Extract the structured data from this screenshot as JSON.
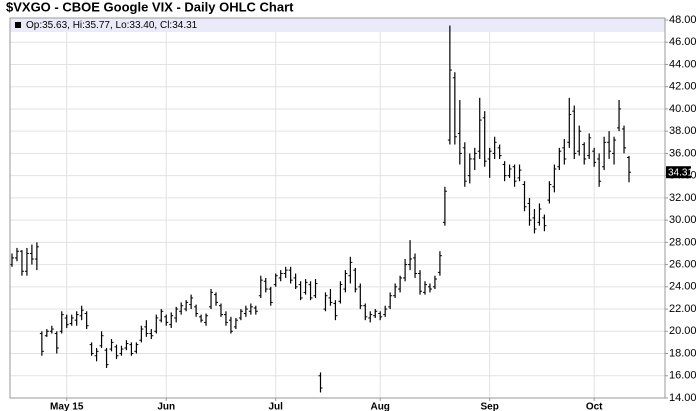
{
  "chart_data": {
    "type": "ohlc",
    "title": "$VXGO - CBOE Google VIX - Daily OHLC Chart",
    "annotation": "Op:35.63, Hi:35.77, Lo:33.40, Cl:34.31",
    "color": "#000000",
    "grid": true,
    "categories": [
      null,
      null,
      null,
      null,
      null,
      null,
      null,
      null,
      null,
      null,
      null,
      "May 15",
      null,
      null,
      null,
      null,
      null,
      null,
      null,
      null,
      null,
      null,
      null,
      null,
      null,
      null,
      null,
      null,
      null,
      null,
      null,
      "Jun",
      null,
      null,
      null,
      null,
      null,
      null,
      null,
      null,
      null,
      null,
      null,
      null,
      null,
      null,
      null,
      null,
      null,
      null,
      null,
      null,
      null,
      "Jul",
      null,
      null,
      null,
      null,
      null,
      null,
      null,
      null,
      null,
      null,
      null,
      null,
      null,
      null,
      null,
      null,
      null,
      null,
      null,
      null,
      "Aug",
      null,
      null,
      null,
      null,
      null,
      null,
      null,
      null,
      null,
      null,
      null,
      null,
      null,
      null,
      null,
      null,
      null,
      null,
      null,
      null,
      null,
      "Sep",
      null,
      null,
      null,
      null,
      null,
      null,
      null,
      null,
      null,
      null,
      null,
      null,
      null,
      null,
      null,
      null,
      null,
      null,
      null,
      null,
      "Oct",
      null,
      null,
      null,
      null,
      null,
      null,
      null
    ],
    "open": [
      26.0,
      26.6,
      27.2,
      25.4,
      27.0,
      26.5,
      19.8,
      19.6,
      20.0,
      19.8,
      20.0,
      21.2,
      20.7,
      21.0,
      21.4,
      21.6,
      18.8,
      17.8,
      18.7,
      18.3,
      18.4,
      18.6,
      18.0,
      18.5,
      18.8,
      18.2,
      19.2,
      20.4,
      19.8,
      20.0,
      21.0,
      21.3,
      20.6,
      21.2,
      21.8,
      22.0,
      22.4,
      22.2,
      21.3,
      20.8,
      22.2,
      23.3,
      22.3,
      21.5,
      21.0,
      20.4,
      21.2,
      21.6,
      21.8,
      22.1,
      23.2,
      24.5,
      23.8,
      24.2,
      24.8,
      25.2,
      25.5,
      24.8,
      24.2,
      23.5,
      24.2,
      23.2,
      16.0,
      22.0,
      23.0,
      22.5,
      22.7,
      23.8,
      25.0,
      25.5,
      24.0,
      22.3,
      21.2,
      21.4,
      21.6,
      21.5,
      22.2,
      23.2,
      23.8,
      24.8,
      26.0,
      26.6,
      25.2,
      23.5,
      24.0,
      24.0,
      25.3,
      29.8,
      37.2,
      42.8,
      37.8,
      36.5,
      34.0,
      35.5,
      36.2,
      39.2,
      35.5,
      36.0,
      36.5,
      35.0,
      34.0,
      34.8,
      33.8,
      33.2,
      31.5,
      30.2,
      29.8,
      30.2,
      31.8,
      33.0,
      34.8,
      36.5,
      37.0,
      39.8,
      36.2,
      36.8,
      35.8,
      36.2,
      35.5,
      34.8,
      37.0,
      36.0,
      38.3,
      38.2,
      35.63
    ],
    "high": [
      27.0,
      27.5,
      27.3,
      27.5,
      27.8,
      28.0,
      20.0,
      20.2,
      20.5,
      20.0,
      21.8,
      21.5,
      21.5,
      21.8,
      22.3,
      21.8,
      19.0,
      18.5,
      20.0,
      18.5,
      19.3,
      18.8,
      18.7,
      19.2,
      19.0,
      19.0,
      20.5,
      21.0,
      20.2,
      21.5,
      22.0,
      21.5,
      21.7,
      22.2,
      22.6,
      22.8,
      23.3,
      22.4,
      21.5,
      21.6,
      23.8,
      23.5,
      22.5,
      21.8,
      21.3,
      21.2,
      22.0,
      22.3,
      22.5,
      22.3,
      25.0,
      24.8,
      24.0,
      25.2,
      25.5,
      25.8,
      25.8,
      25.2,
      24.5,
      24.7,
      24.5,
      24.7,
      16.3,
      23.5,
      23.8,
      22.8,
      24.5,
      25.5,
      26.7,
      25.7,
      24.3,
      22.5,
      21.8,
      22.0,
      21.8,
      22.3,
      23.5,
      24.3,
      25.0,
      26.5,
      28.2,
      27.0,
      25.5,
      24.5,
      24.3,
      25.0,
      27.2,
      33.0,
      47.5,
      43.3,
      40.8,
      37.0,
      36.0,
      36.5,
      41.0,
      39.8,
      36.5,
      37.5,
      36.8,
      35.3,
      35.0,
      35.0,
      35.0,
      33.5,
      32.0,
      31.0,
      31.5,
      30.5,
      33.5,
      35.0,
      36.5,
      37.3,
      41.0,
      40.3,
      38.5,
      37.0,
      37.8,
      36.5,
      36.0,
      37.5,
      38.0,
      37.5,
      40.8,
      38.5,
      35.77
    ],
    "low": [
      25.8,
      26.3,
      25.0,
      25.0,
      26.0,
      25.5,
      17.8,
      19.5,
      19.8,
      18.0,
      19.8,
      20.3,
      20.5,
      20.5,
      21.0,
      20.2,
      17.8,
      17.3,
      18.5,
      16.7,
      18.2,
      17.5,
      17.8,
      18.3,
      17.8,
      18.0,
      19.0,
      19.5,
      19.3,
      19.8,
      20.8,
      20.5,
      20.3,
      20.8,
      21.5,
      21.8,
      22.0,
      21.3,
      20.8,
      20.5,
      22.0,
      22.3,
      21.3,
      20.5,
      19.8,
      20.2,
      21.0,
      21.3,
      21.5,
      21.5,
      23.0,
      23.5,
      22.3,
      24.0,
      24.5,
      24.8,
      24.3,
      23.8,
      22.8,
      23.3,
      22.8,
      23.0,
      14.5,
      21.8,
      22.3,
      21.0,
      22.5,
      23.5,
      24.3,
      23.5,
      22.0,
      21.0,
      20.8,
      21.2,
      21.0,
      21.3,
      22.0,
      23.0,
      23.5,
      24.5,
      25.5,
      24.8,
      23.3,
      23.3,
      23.5,
      23.8,
      25.0,
      29.5,
      36.8,
      36.8,
      35.0,
      33.0,
      33.3,
      34.5,
      35.5,
      34.8,
      33.8,
      35.5,
      35.5,
      33.5,
      33.8,
      33.0,
      33.5,
      30.8,
      29.5,
      28.8,
      29.5,
      29.0,
      31.5,
      32.5,
      34.5,
      35.0,
      36.5,
      35.5,
      35.8,
      35.0,
      35.5,
      34.8,
      33.0,
      34.5,
      35.5,
      35.0,
      38.0,
      36.0,
      33.4
    ],
    "close": [
      26.6,
      27.2,
      25.4,
      27.0,
      26.5,
      27.6,
      18.2,
      20.0,
      20.2,
      18.5,
      21.5,
      20.6,
      21.2,
      21.5,
      21.9,
      20.5,
      18.0,
      18.2,
      19.6,
      17.0,
      19.0,
      17.8,
      18.4,
      18.9,
      18.0,
      18.8,
      20.2,
      19.8,
      19.6,
      21.2,
      21.8,
      20.8,
      21.4,
      22.0,
      22.3,
      22.6,
      23.0,
      21.6,
      21.0,
      21.4,
      23.5,
      22.6,
      21.5,
      20.8,
      20.0,
      21.0,
      21.8,
      22.0,
      22.2,
      21.8,
      24.6,
      23.8,
      22.6,
      25.0,
      25.2,
      25.5,
      24.6,
      24.0,
      23.0,
      24.4,
      23.0,
      24.3,
      14.9,
      23.2,
      22.6,
      21.4,
      24.2,
      25.2,
      26.2,
      23.8,
      22.3,
      21.3,
      21.5,
      21.8,
      21.3,
      22.0,
      23.2,
      24.0,
      24.8,
      26.0,
      26.5,
      25.2,
      23.6,
      24.2,
      23.8,
      24.7,
      26.8,
      32.6,
      43.5,
      37.5,
      36.0,
      33.5,
      35.5,
      36.0,
      39.0,
      35.3,
      36.2,
      37.0,
      35.8,
      34.0,
      34.6,
      33.5,
      34.5,
      31.2,
      30.0,
      29.2,
      31.0,
      29.5,
      33.2,
      34.6,
      36.2,
      35.5,
      39.5,
      36.0,
      38.0,
      35.5,
      37.4,
      35.2,
      33.5,
      37.0,
      36.2,
      37.2,
      40.0,
      36.5,
      34.31
    ],
    "ylim": [
      14,
      48
    ],
    "yticks": [
      {
        "value": 14,
        "label": "14.00"
      },
      {
        "value": 16,
        "label": "16.00"
      },
      {
        "value": 18,
        "label": "18.00"
      },
      {
        "value": 20,
        "label": "20.00"
      },
      {
        "value": 22,
        "label": "22.00"
      },
      {
        "value": 24,
        "label": "24.00"
      },
      {
        "value": 26,
        "label": "26.00"
      },
      {
        "value": 28,
        "label": "28.00"
      },
      {
        "value": 30,
        "label": "30.00"
      },
      {
        "value": 32,
        "label": "32.00"
      },
      {
        "value": 34,
        "label": "34.00"
      },
      {
        "value": 36,
        "label": "36.00"
      },
      {
        "value": 38,
        "label": "38.00"
      },
      {
        "value": 40,
        "label": "40.00"
      },
      {
        "value": 42,
        "label": "42.00"
      },
      {
        "value": 44,
        "label": "44.00"
      },
      {
        "value": 46,
        "label": "46.00"
      },
      {
        "value": 48,
        "label": "48.00"
      }
    ]
  }
}
